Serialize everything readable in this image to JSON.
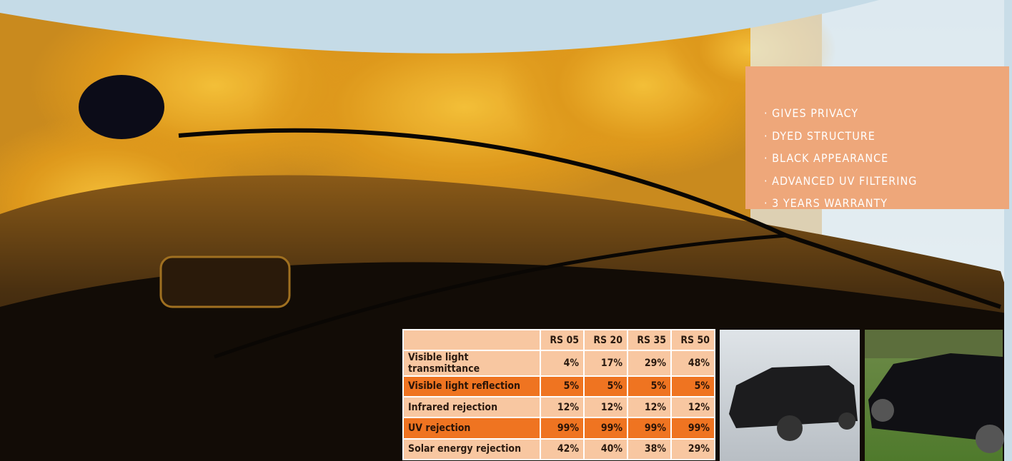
{
  "features": {
    "items": [
      "· GIVES PRIVACY",
      "· DYED STRUCTURE",
      "· BLACK APPEARANCE",
      "· ADVANCED UV FILTERING",
      "· 3 YEARS WARRANTY"
    ]
  },
  "table": {
    "header": [
      "",
      "RS 05",
      "RS 20",
      "RS 35",
      "RS 50"
    ],
    "rows": [
      [
        "Visible light transmittance",
        "4%",
        "17%",
        "29%",
        "48%"
      ],
      [
        "Visible light reflection",
        "5%",
        "5%",
        "5%",
        "5%"
      ],
      [
        "Infrared rejection",
        "12%",
        "12%",
        "12%",
        "12%"
      ],
      [
        "UV rejection",
        "99%",
        "99%",
        "99%",
        "99%"
      ],
      [
        "Solar energy rejection",
        "42%",
        "40%",
        "38%",
        "29%"
      ]
    ]
  }
}
